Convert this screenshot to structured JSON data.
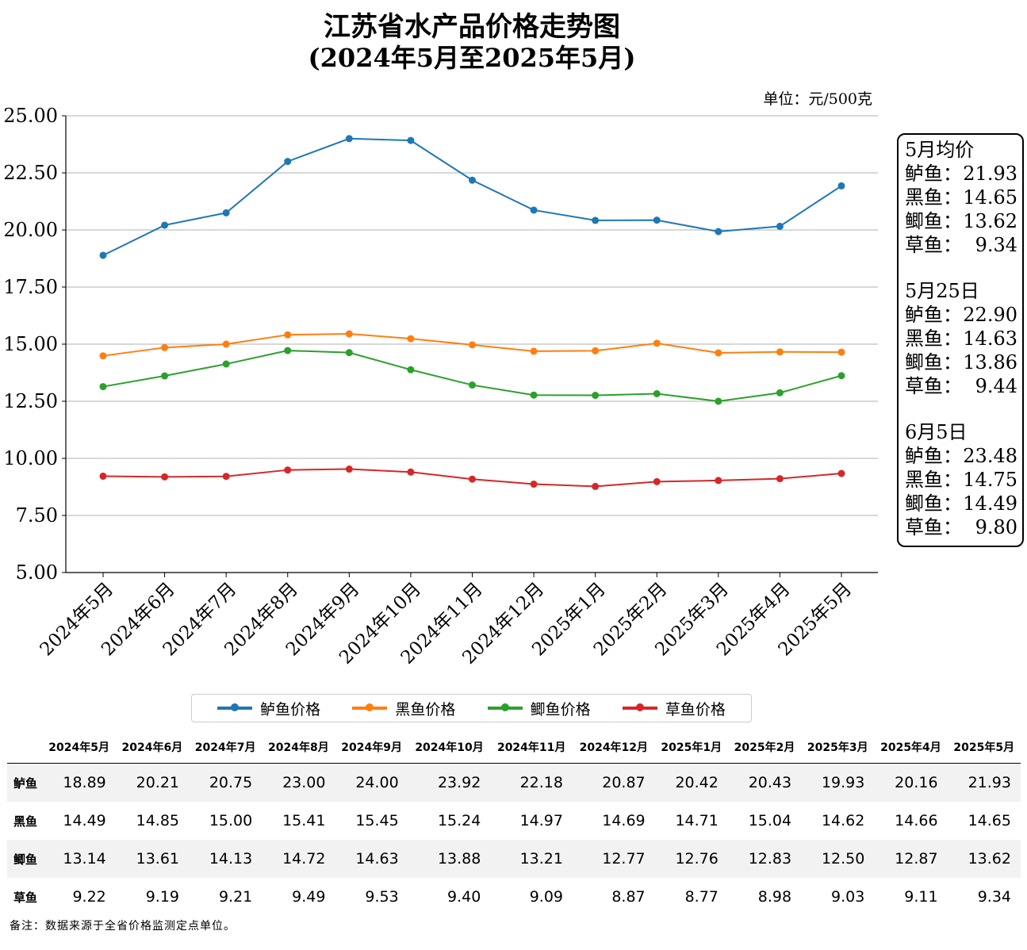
{
  "title": "江苏省水产品价格走势图",
  "subtitle": "(2024年5月至2025年5月)",
  "unit_label": "单位：元/500克",
  "note": "备注：数据来源于全省价格监测定点单位。",
  "chart_data": {
    "type": "line",
    "categories": [
      "2024年5月",
      "2024年6月",
      "2024年7月",
      "2024年8月",
      "2024年9月",
      "2024年10月",
      "2024年11月",
      "2024年12月",
      "2025年1月",
      "2025年2月",
      "2025年3月",
      "2025年4月",
      "2025年5月"
    ],
    "ylim": [
      5,
      25
    ],
    "yticks": [
      "5.00",
      "7.50",
      "10.00",
      "12.50",
      "15.00",
      "17.50",
      "20.00",
      "22.50",
      "25.00"
    ],
    "grid": "horizontal",
    "legend_position": "bottom",
    "series": [
      {
        "name": "鲈鱼价格",
        "color": "#1f77b4",
        "values": [
          18.89,
          20.21,
          20.75,
          23.0,
          24.0,
          23.92,
          22.18,
          20.87,
          20.42,
          20.43,
          19.93,
          20.16,
          21.93
        ]
      },
      {
        "name": "黑鱼价格",
        "color": "#ff7f0e",
        "values": [
          14.49,
          14.85,
          15.0,
          15.41,
          15.45,
          15.24,
          14.97,
          14.69,
          14.71,
          15.04,
          14.62,
          14.66,
          14.65
        ]
      },
      {
        "name": "鲫鱼价格",
        "color": "#2ca02c",
        "values": [
          13.14,
          13.61,
          14.13,
          14.72,
          14.63,
          13.88,
          13.21,
          12.77,
          12.76,
          12.83,
          12.5,
          12.87,
          13.62
        ]
      },
      {
        "name": "草鱼价格",
        "color": "#d62728",
        "values": [
          9.22,
          9.19,
          9.21,
          9.49,
          9.53,
          9.4,
          9.09,
          8.87,
          8.77,
          8.98,
          9.03,
          9.11,
          9.34
        ]
      }
    ]
  },
  "stats_box": [
    {
      "title": "5月均价",
      "rows": [
        {
          "name": "鲈鱼：",
          "value": "21.93"
        },
        {
          "name": "黑鱼：",
          "value": "14.65"
        },
        {
          "name": "鲫鱼：",
          "value": "13.62"
        },
        {
          "name": "草鱼：",
          "value": "9.34"
        }
      ]
    },
    {
      "title": "5月25日",
      "rows": [
        {
          "name": "鲈鱼：",
          "value": "22.90"
        },
        {
          "name": "黑鱼：",
          "value": "14.63"
        },
        {
          "name": "鲫鱼：",
          "value": "13.86"
        },
        {
          "name": "草鱼：",
          "value": "9.44"
        }
      ]
    },
    {
      "title": "6月5日",
      "rows": [
        {
          "name": "鲈鱼：",
          "value": "23.48"
        },
        {
          "name": "黑鱼：",
          "value": "14.75"
        },
        {
          "name": "鲫鱼：",
          "value": "14.49"
        },
        {
          "name": "草鱼：",
          "value": "9.80"
        }
      ]
    }
  ],
  "table": {
    "row_labels": [
      "鲈鱼",
      "黑鱼",
      "鲫鱼",
      "草鱼"
    ],
    "columns": [
      "2024年5月",
      "2024年6月",
      "2024年7月",
      "2024年8月",
      "2024年9月",
      "2024年10月",
      "2024年11月",
      "2024年12月",
      "2025年1月",
      "2025年2月",
      "2025年3月",
      "2025年4月",
      "2025年5月"
    ],
    "rows": [
      [
        "18.89",
        "20.21",
        "20.75",
        "23.00",
        "24.00",
        "23.92",
        "22.18",
        "20.87",
        "20.42",
        "20.43",
        "19.93",
        "20.16",
        "21.93"
      ],
      [
        "14.49",
        "14.85",
        "15.00",
        "15.41",
        "15.45",
        "15.24",
        "14.97",
        "14.69",
        "14.71",
        "15.04",
        "14.62",
        "14.66",
        "14.65"
      ],
      [
        "13.14",
        "13.61",
        "14.13",
        "14.72",
        "14.63",
        "13.88",
        "13.21",
        "12.77",
        "12.76",
        "12.83",
        "12.50",
        "12.87",
        "13.62"
      ],
      [
        "9.22",
        "9.19",
        "9.21",
        "9.49",
        "9.53",
        "9.40",
        "9.09",
        "8.87",
        "8.77",
        "8.98",
        "9.03",
        "9.11",
        "9.34"
      ]
    ]
  }
}
